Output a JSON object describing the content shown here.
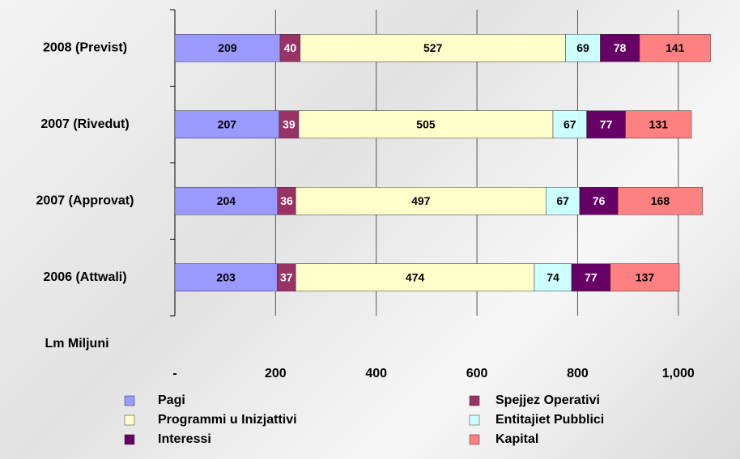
{
  "chart_data": {
    "type": "stacked-barh",
    "xlabel": "Lm Miljuni",
    "categories": [
      "2008 (Previst)",
      "2007 (Rivedut)",
      "2007 (Approvat)",
      "2006 (Attwali)"
    ],
    "series": [
      {
        "name": "Pagi",
        "color": "#9999ff",
        "label_color": "#000000",
        "values": [
          209,
          207,
          204,
          203
        ]
      },
      {
        "name": "Spejjez Operativi",
        "color": "#993366",
        "label_color": "#ffffff",
        "values": [
          40,
          39,
          36,
          37
        ]
      },
      {
        "name": "Programmi u Inizjattivi",
        "color": "#ffffcc",
        "label_color": "#000000",
        "values": [
          527,
          505,
          497,
          474
        ]
      },
      {
        "name": "Entitajiet Pubblici",
        "color": "#ccffff",
        "label_color": "#000000",
        "values": [
          69,
          67,
          67,
          74
        ]
      },
      {
        "name": "Interessi",
        "color": "#660066",
        "label_color": "#ffffff",
        "values": [
          78,
          77,
          76,
          77
        ]
      },
      {
        "name": "Kapital",
        "color": "#ff8080",
        "label_color": "#000000",
        "values": [
          141,
          131,
          168,
          137
        ]
      }
    ],
    "xlim": [
      0,
      1100
    ],
    "xticks": [
      {
        "value": 0,
        "label": "-"
      },
      200,
      400,
      600,
      800,
      {
        "value": 1000,
        "label": "1,000"
      }
    ],
    "grid": true
  }
}
